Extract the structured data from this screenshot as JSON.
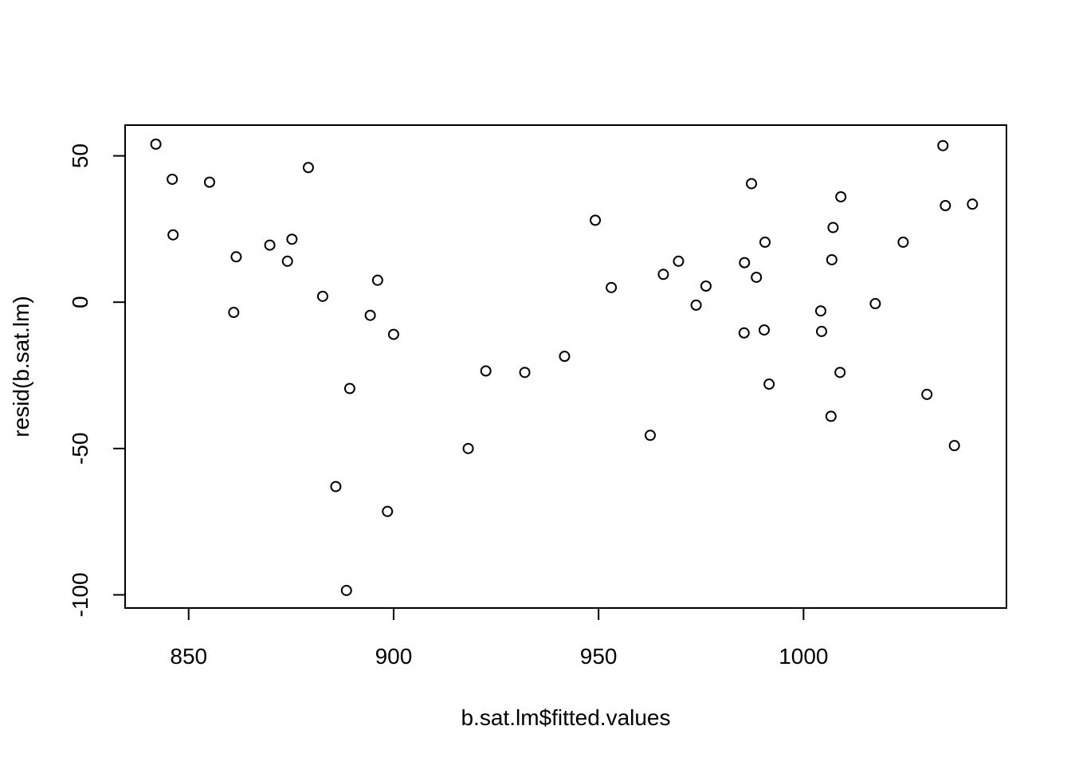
{
  "chart_data": {
    "type": "scatter",
    "xlabel": "b.sat.lm$fitted.values",
    "ylabel": "resid(b.sat.lm)",
    "xlim": [
      834.5,
      1049.5
    ],
    "ylim": [
      -104.5,
      60.5
    ],
    "xticks": [
      850,
      900,
      950,
      1000
    ],
    "yticks": [
      -100,
      -50,
      0,
      50
    ],
    "xtick_labels": [
      "850",
      "900",
      "950",
      "1000"
    ],
    "ytick_labels": [
      "-100",
      "-50",
      "0",
      "50"
    ],
    "grid": false,
    "legend": "none",
    "marker": "open-circle",
    "colors": {
      "points": "#000000",
      "axes": "#000000",
      "background": "#ffffff"
    },
    "points": [
      {
        "x": 842.0,
        "y": 54.0
      },
      {
        "x": 846.0,
        "y": 42.0
      },
      {
        "x": 846.2,
        "y": 23.0
      },
      {
        "x": 855.1,
        "y": 41.0
      },
      {
        "x": 861.0,
        "y": -3.5
      },
      {
        "x": 861.6,
        "y": 15.5
      },
      {
        "x": 869.8,
        "y": 19.5
      },
      {
        "x": 874.1,
        "y": 14.0
      },
      {
        "x": 875.2,
        "y": 21.5
      },
      {
        "x": 879.2,
        "y": 46.0
      },
      {
        "x": 882.7,
        "y": 2.0
      },
      {
        "x": 885.9,
        "y": -63.0
      },
      {
        "x": 888.5,
        "y": -98.5
      },
      {
        "x": 889.3,
        "y": -29.5
      },
      {
        "x": 894.3,
        "y": -4.5
      },
      {
        "x": 896.1,
        "y": 7.5
      },
      {
        "x": 898.5,
        "y": -71.5
      },
      {
        "x": 900.0,
        "y": -11.0
      },
      {
        "x": 918.2,
        "y": -50.0
      },
      {
        "x": 922.5,
        "y": -23.5
      },
      {
        "x": 932.0,
        "y": -24.0
      },
      {
        "x": 941.7,
        "y": -18.5
      },
      {
        "x": 949.2,
        "y": 28.0
      },
      {
        "x": 953.1,
        "y": 5.0
      },
      {
        "x": 962.6,
        "y": -45.5
      },
      {
        "x": 965.8,
        "y": 9.5
      },
      {
        "x": 969.5,
        "y": 14.0
      },
      {
        "x": 973.8,
        "y": -1.0
      },
      {
        "x": 976.2,
        "y": 5.5
      },
      {
        "x": 985.5,
        "y": -10.5
      },
      {
        "x": 985.6,
        "y": 13.5
      },
      {
        "x": 987.3,
        "y": 40.5
      },
      {
        "x": 988.5,
        "y": 8.5
      },
      {
        "x": 990.4,
        "y": -9.5
      },
      {
        "x": 990.6,
        "y": 20.5
      },
      {
        "x": 991.6,
        "y": -28.0
      },
      {
        "x": 1004.2,
        "y": -3.0
      },
      {
        "x": 1004.4,
        "y": -10.0
      },
      {
        "x": 1006.7,
        "y": -39.0
      },
      {
        "x": 1006.9,
        "y": 14.5
      },
      {
        "x": 1007.2,
        "y": 25.5
      },
      {
        "x": 1008.9,
        "y": -24.0
      },
      {
        "x": 1009.1,
        "y": 36.0
      },
      {
        "x": 1017.5,
        "y": -0.5
      },
      {
        "x": 1024.3,
        "y": 20.5
      },
      {
        "x": 1030.1,
        "y": -31.5
      },
      {
        "x": 1034.0,
        "y": 53.5
      },
      {
        "x": 1034.6,
        "y": 33.0
      },
      {
        "x": 1036.8,
        "y": -49.0
      },
      {
        "x": 1041.2,
        "y": 33.5
      }
    ]
  }
}
